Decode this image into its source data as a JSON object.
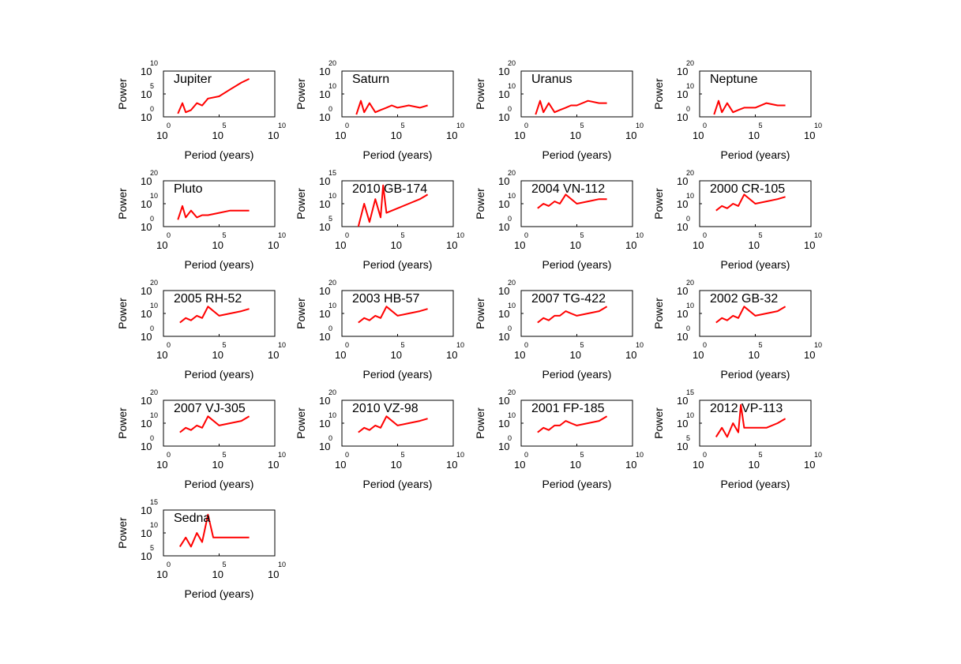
{
  "figure": {
    "background_color": "#ffffff",
    "series_color": "#ff0000"
  },
  "chart_data": [
    {
      "type": "line",
      "title": "Jupiter",
      "xlabel": "Period (years)",
      "ylabel": "Power",
      "xscale": "log",
      "yscale": "log",
      "xlim": [
        1,
        10000000000.0
      ],
      "ylim": [
        1,
        10000000000.0
      ],
      "xtick_base": "10",
      "xtick_exponents": [
        "0",
        "5",
        "10"
      ],
      "ytick_base": "10",
      "ytick_exponents": [
        "0",
        "5",
        "10"
      ],
      "series": [
        {
          "x": [
            20,
            50,
            100,
            300,
            1000,
            3000,
            10000,
            100000,
            1000000,
            10000000,
            50000000
          ],
          "y": [
            5,
            1000,
            10,
            30,
            1000,
            300,
            10000,
            30000,
            1000000,
            30000000,
            200000000
          ]
        }
      ]
    },
    {
      "type": "line",
      "title": "Saturn",
      "xlabel": "Period (years)",
      "ylabel": "Power",
      "xscale": "log",
      "yscale": "log",
      "xlim": [
        1,
        10000000000.0
      ],
      "ylim": [
        1,
        1e+20
      ],
      "xtick_base": "10",
      "xtick_exponents": [
        "0",
        "5",
        "10"
      ],
      "ytick_base": "10",
      "ytick_exponents": [
        "0",
        "10",
        "20"
      ],
      "series": [
        {
          "x": [
            20,
            50,
            100,
            300,
            1000,
            3000,
            10000,
            30000,
            100000,
            1000000,
            10000000,
            50000000
          ],
          "y": [
            10,
            10000000,
            100,
            1000000,
            100,
            1000,
            10000,
            100000,
            10000,
            100000,
            10000,
            100000
          ]
        }
      ]
    },
    {
      "type": "line",
      "title": "Uranus",
      "xlabel": "Period (years)",
      "ylabel": "Power",
      "xscale": "log",
      "yscale": "log",
      "xlim": [
        1,
        10000000000.0
      ],
      "ylim": [
        1,
        1e+20
      ],
      "xtick_base": "10",
      "xtick_exponents": [
        "0",
        "5",
        "10"
      ],
      "ytick_base": "10",
      "ytick_exponents": [
        "0",
        "10",
        "20"
      ],
      "series": [
        {
          "x": [
            20,
            50,
            100,
            300,
            1000,
            3000,
            10000,
            30000,
            100000,
            1000000,
            10000000,
            50000000
          ],
          "y": [
            10,
            10000000,
            100,
            1000000,
            100,
            1000,
            10000,
            100000,
            100000,
            10000000,
            1000000,
            1000000
          ]
        }
      ]
    },
    {
      "type": "line",
      "title": "Neptune",
      "xlabel": "Period (years)",
      "ylabel": "Power",
      "xscale": "log",
      "yscale": "log",
      "xlim": [
        1,
        10000000000.0
      ],
      "ylim": [
        1,
        1e+20
      ],
      "xtick_base": "10",
      "xtick_exponents": [
        "0",
        "5",
        "10"
      ],
      "ytick_base": "10",
      "ytick_exponents": [
        "0",
        "10",
        "20"
      ],
      "series": [
        {
          "x": [
            20,
            50,
            100,
            300,
            1000,
            3000,
            10000,
            100000,
            1000000,
            10000000,
            50000000
          ],
          "y": [
            10,
            10000000,
            100,
            1000000,
            100,
            1000,
            10000,
            10000,
            1000000,
            100000,
            100000
          ]
        }
      ]
    },
    {
      "type": "line",
      "title": "Pluto",
      "xlabel": "Period (years)",
      "ylabel": "Power",
      "xscale": "log",
      "yscale": "log",
      "xlim": [
        1,
        10000000000.0
      ],
      "ylim": [
        1,
        1e+20
      ],
      "xtick_base": "10",
      "xtick_exponents": [
        "0",
        "5",
        "10"
      ],
      "ytick_base": "10",
      "ytick_exponents": [
        "0",
        "10",
        "20"
      ],
      "series": [
        {
          "x": [
            20,
            50,
            100,
            300,
            1000,
            3000,
            10000,
            100000,
            1000000,
            10000000,
            50000000
          ],
          "y": [
            1000,
            1000000000,
            10000,
            10000000,
            10000,
            100000,
            100000,
            1000000,
            10000000,
            10000000,
            10000000
          ]
        }
      ]
    },
    {
      "type": "line",
      "title": "2010 GB-174",
      "xlabel": "Period (years)",
      "ylabel": "Power",
      "xscale": "log",
      "yscale": "log",
      "xlim": [
        1,
        10000000000.0
      ],
      "ylim": [
        100000.0,
        1000000000000000.0
      ],
      "xtick_base": "10",
      "xtick_exponents": [
        "0",
        "5",
        "10"
      ],
      "ytick_base": "10",
      "ytick_exponents": [
        "5",
        "10",
        "15"
      ],
      "series": [
        {
          "x": [
            30,
            100,
            300,
            1000,
            3000,
            5000,
            10000,
            100000,
            1000000,
            10000000,
            50000000
          ],
          "y": [
            100000,
            10000000000,
            1000000,
            100000000000,
            10000000,
            100000000000000,
            100000000,
            1000000000,
            10000000000,
            100000000000,
            1000000000000
          ]
        }
      ]
    },
    {
      "type": "line",
      "title": "2004 VN-112",
      "xlabel": "Period (years)",
      "ylabel": "Power",
      "xscale": "log",
      "yscale": "log",
      "xlim": [
        1,
        10000000000.0
      ],
      "ylim": [
        1,
        1e+20
      ],
      "xtick_base": "10",
      "xtick_exponents": [
        "0",
        "5",
        "10"
      ],
      "ytick_base": "10",
      "ytick_exponents": [
        "0",
        "10",
        "20"
      ],
      "series": [
        {
          "x": [
            30,
            100,
            300,
            1000,
            3000,
            10000,
            100000,
            1000000,
            10000000,
            50000000
          ],
          "y": [
            100000000,
            10000000000,
            1000000000,
            100000000000,
            10000000000,
            100000000000000,
            10000000000,
            100000000000,
            1000000000000,
            1000000000000
          ]
        }
      ]
    },
    {
      "type": "line",
      "title": "2000 CR-105",
      "xlabel": "Period (years)",
      "ylabel": "Power",
      "xscale": "log",
      "yscale": "log",
      "xlim": [
        1,
        10000000000.0
      ],
      "ylim": [
        1,
        1e+20
      ],
      "xtick_base": "10",
      "xtick_exponents": [
        "0",
        "5",
        "10"
      ],
      "ytick_base": "10",
      "ytick_exponents": [
        "0",
        "10",
        "20"
      ],
      "series": [
        {
          "x": [
            30,
            100,
            300,
            1000,
            3000,
            10000,
            100000,
            1000000,
            10000000,
            50000000
          ],
          "y": [
            10000000,
            1000000000,
            100000000,
            10000000000,
            1000000000,
            100000000000000,
            10000000000,
            100000000000,
            1000000000000,
            10000000000000
          ]
        }
      ]
    },
    {
      "type": "line",
      "title": "2005 RH-52",
      "xlabel": "Period (years)",
      "ylabel": "Power",
      "xscale": "log",
      "yscale": "log",
      "xlim": [
        1,
        10000000000.0
      ],
      "ylim": [
        1,
        1e+20
      ],
      "xtick_base": "10",
      "xtick_exponents": [
        "0",
        "5",
        "10"
      ],
      "ytick_base": "10",
      "ytick_exponents": [
        "0",
        "10",
        "20"
      ],
      "series": [
        {
          "x": [
            30,
            100,
            300,
            1000,
            3000,
            10000,
            100000,
            1000000,
            10000000,
            50000000
          ],
          "y": [
            1000000,
            100000000,
            10000000,
            1000000000,
            100000000,
            10000000000000,
            1000000000,
            10000000000,
            100000000000,
            1000000000000
          ]
        }
      ]
    },
    {
      "type": "line",
      "title": "2003 HB-57",
      "xlabel": "Period (years)",
      "ylabel": "Power",
      "xscale": "log",
      "yscale": "log",
      "xlim": [
        1,
        10000000000.0
      ],
      "ylim": [
        1,
        1e+20
      ],
      "xtick_base": "10",
      "xtick_exponents": [
        "0",
        "5",
        "10"
      ],
      "ytick_base": "10",
      "ytick_exponents": [
        "0",
        "10",
        "20"
      ],
      "series": [
        {
          "x": [
            30,
            100,
            300,
            1000,
            3000,
            10000,
            100000,
            1000000,
            10000000,
            50000000
          ],
          "y": [
            1000000,
            100000000,
            10000000,
            1000000000,
            100000000,
            10000000000000,
            1000000000,
            10000000000,
            100000000000,
            1000000000000
          ]
        }
      ]
    },
    {
      "type": "line",
      "title": "2007 TG-422",
      "xlabel": "Period (years)",
      "ylabel": "Power",
      "xscale": "log",
      "yscale": "log",
      "xlim": [
        1,
        10000000000.0
      ],
      "ylim": [
        1,
        1e+20
      ],
      "xtick_base": "10",
      "xtick_exponents": [
        "0",
        "5",
        "10"
      ],
      "ytick_base": "10",
      "ytick_exponents": [
        "0",
        "10",
        "20"
      ],
      "series": [
        {
          "x": [
            30,
            100,
            300,
            1000,
            3000,
            10000,
            30000,
            100000,
            1000000,
            10000000,
            50000000
          ],
          "y": [
            1000000,
            100000000,
            10000000,
            1000000000,
            1000000000,
            100000000000,
            10000000000,
            1000000000,
            10000000000,
            100000000000,
            10000000000000
          ]
        }
      ]
    },
    {
      "type": "line",
      "title": "2002 GB-32",
      "xlabel": "Period (years)",
      "ylabel": "Power",
      "xscale": "log",
      "yscale": "log",
      "xlim": [
        1,
        10000000000.0
      ],
      "ylim": [
        1,
        1e+20
      ],
      "xtick_base": "10",
      "xtick_exponents": [
        "0",
        "5",
        "10"
      ],
      "ytick_base": "10",
      "ytick_exponents": [
        "0",
        "10",
        "20"
      ],
      "series": [
        {
          "x": [
            30,
            100,
            300,
            1000,
            3000,
            10000,
            100000,
            1000000,
            10000000,
            50000000
          ],
          "y": [
            1000000,
            100000000,
            10000000,
            1000000000,
            100000000,
            10000000000000,
            1000000000,
            10000000000,
            100000000000,
            10000000000000
          ]
        }
      ]
    },
    {
      "type": "line",
      "title": "2007 VJ-305",
      "xlabel": "Period (years)",
      "ylabel": "Power",
      "xscale": "log",
      "yscale": "log",
      "xlim": [
        1,
        10000000000.0
      ],
      "ylim": [
        1,
        1e+20
      ],
      "xtick_base": "10",
      "xtick_exponents": [
        "0",
        "5",
        "10"
      ],
      "ytick_base": "10",
      "ytick_exponents": [
        "0",
        "10",
        "20"
      ],
      "series": [
        {
          "x": [
            30,
            100,
            300,
            1000,
            3000,
            10000,
            100000,
            1000000,
            10000000,
            50000000
          ],
          "y": [
            1000000,
            100000000,
            10000000,
            1000000000,
            100000000,
            10000000000000,
            1000000000,
            10000000000,
            100000000000,
            10000000000000
          ]
        }
      ]
    },
    {
      "type": "line",
      "title": "2010 VZ-98",
      "xlabel": "Period (years)",
      "ylabel": "Power",
      "xscale": "log",
      "yscale": "log",
      "xlim": [
        1,
        10000000000.0
      ],
      "ylim": [
        1,
        1e+20
      ],
      "xtick_base": "10",
      "xtick_exponents": [
        "0",
        "5",
        "10"
      ],
      "ytick_base": "10",
      "ytick_exponents": [
        "0",
        "10",
        "20"
      ],
      "series": [
        {
          "x": [
            30,
            100,
            300,
            1000,
            3000,
            10000,
            100000,
            1000000,
            10000000,
            50000000
          ],
          "y": [
            1000000,
            100000000,
            10000000,
            1000000000,
            100000000,
            10000000000000,
            1000000000,
            10000000000,
            100000000000,
            1000000000000
          ]
        }
      ]
    },
    {
      "type": "line",
      "title": "2001 FP-185",
      "xlabel": "Period (years)",
      "ylabel": "Power",
      "xscale": "log",
      "yscale": "log",
      "xlim": [
        1,
        10000000000.0
      ],
      "ylim": [
        1,
        1e+20
      ],
      "xtick_base": "10",
      "xtick_exponents": [
        "0",
        "5",
        "10"
      ],
      "ytick_base": "10",
      "ytick_exponents": [
        "0",
        "10",
        "20"
      ],
      "series": [
        {
          "x": [
            30,
            100,
            300,
            1000,
            3000,
            10000,
            30000,
            100000,
            1000000,
            10000000,
            50000000
          ],
          "y": [
            1000000,
            100000000,
            10000000,
            1000000000,
            1000000000,
            100000000000,
            10000000000,
            1000000000,
            10000000000,
            100000000000,
            10000000000000
          ]
        }
      ]
    },
    {
      "type": "line",
      "title": "2012 VP-113",
      "xlabel": "Period (years)",
      "ylabel": "Power",
      "xscale": "log",
      "yscale": "log",
      "xlim": [
        1,
        10000000000.0
      ],
      "ylim": [
        100000.0,
        1000000000000000.0
      ],
      "xtick_base": "10",
      "xtick_exponents": [
        "0",
        "5",
        "10"
      ],
      "ytick_base": "10",
      "ytick_exponents": [
        "5",
        "10",
        "15"
      ],
      "series": [
        {
          "x": [
            30,
            100,
            300,
            1000,
            3000,
            5000,
            10000,
            100000,
            1000000,
            10000000,
            50000000
          ],
          "y": [
            10000000,
            1000000000,
            10000000,
            10000000000,
            100000000,
            100000000000000,
            1000000000,
            1000000000,
            1000000000,
            10000000000,
            100000000000
          ]
        }
      ]
    },
    {
      "type": "line",
      "title": "Sedna",
      "xlabel": "Period (years)",
      "ylabel": "Power",
      "xscale": "log",
      "yscale": "log",
      "xlim": [
        1,
        10000000000.0
      ],
      "ylim": [
        100000.0,
        1000000000000000.0
      ],
      "xtick_base": "10",
      "xtick_exponents": [
        "0",
        "5",
        "10"
      ],
      "ytick_base": "10",
      "ytick_exponents": [
        "5",
        "10",
        "15"
      ],
      "series": [
        {
          "x": [
            30,
            100,
            300,
            1000,
            3000,
            10000,
            30000,
            100000,
            1000000,
            10000000,
            50000000
          ],
          "y": [
            10000000,
            1000000000,
            10000000,
            10000000000,
            100000000,
            100000000000000,
            1000000000,
            1000000000,
            1000000000,
            1000000000,
            1000000000
          ]
        }
      ]
    }
  ]
}
